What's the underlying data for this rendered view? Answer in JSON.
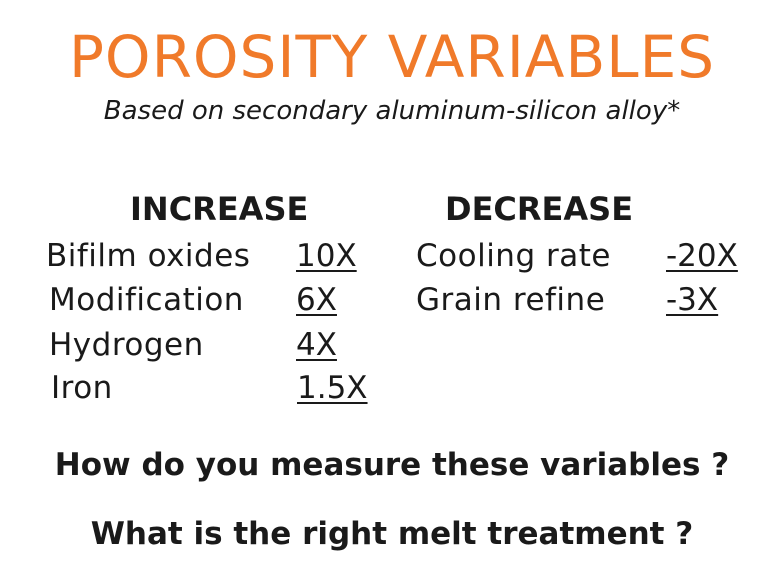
{
  "title": "POROSITY VARIABLES",
  "subtitle": "Based on secondary aluminum-silicon alloy*",
  "increase": {
    "heading": "INCREASE",
    "rows": [
      {
        "label": "Bifilm oxides",
        "value": "10X"
      },
      {
        "label": "Modification",
        "value": "6X"
      },
      {
        "label": "Hydrogen",
        "value": "4X"
      },
      {
        "label": "Iron",
        "value": "1.5X"
      }
    ]
  },
  "decrease": {
    "heading": "DECREASE",
    "rows": [
      {
        "label": "Cooling rate",
        "value": "-20X"
      },
      {
        "label": "Grain refine",
        "value": "-3X"
      }
    ]
  },
  "questions": [
    "How do you measure these variables ?",
    "What is the right melt treatment ?"
  ],
  "colors": {
    "title": "#f07a2a",
    "text": "#1a1a1a"
  }
}
